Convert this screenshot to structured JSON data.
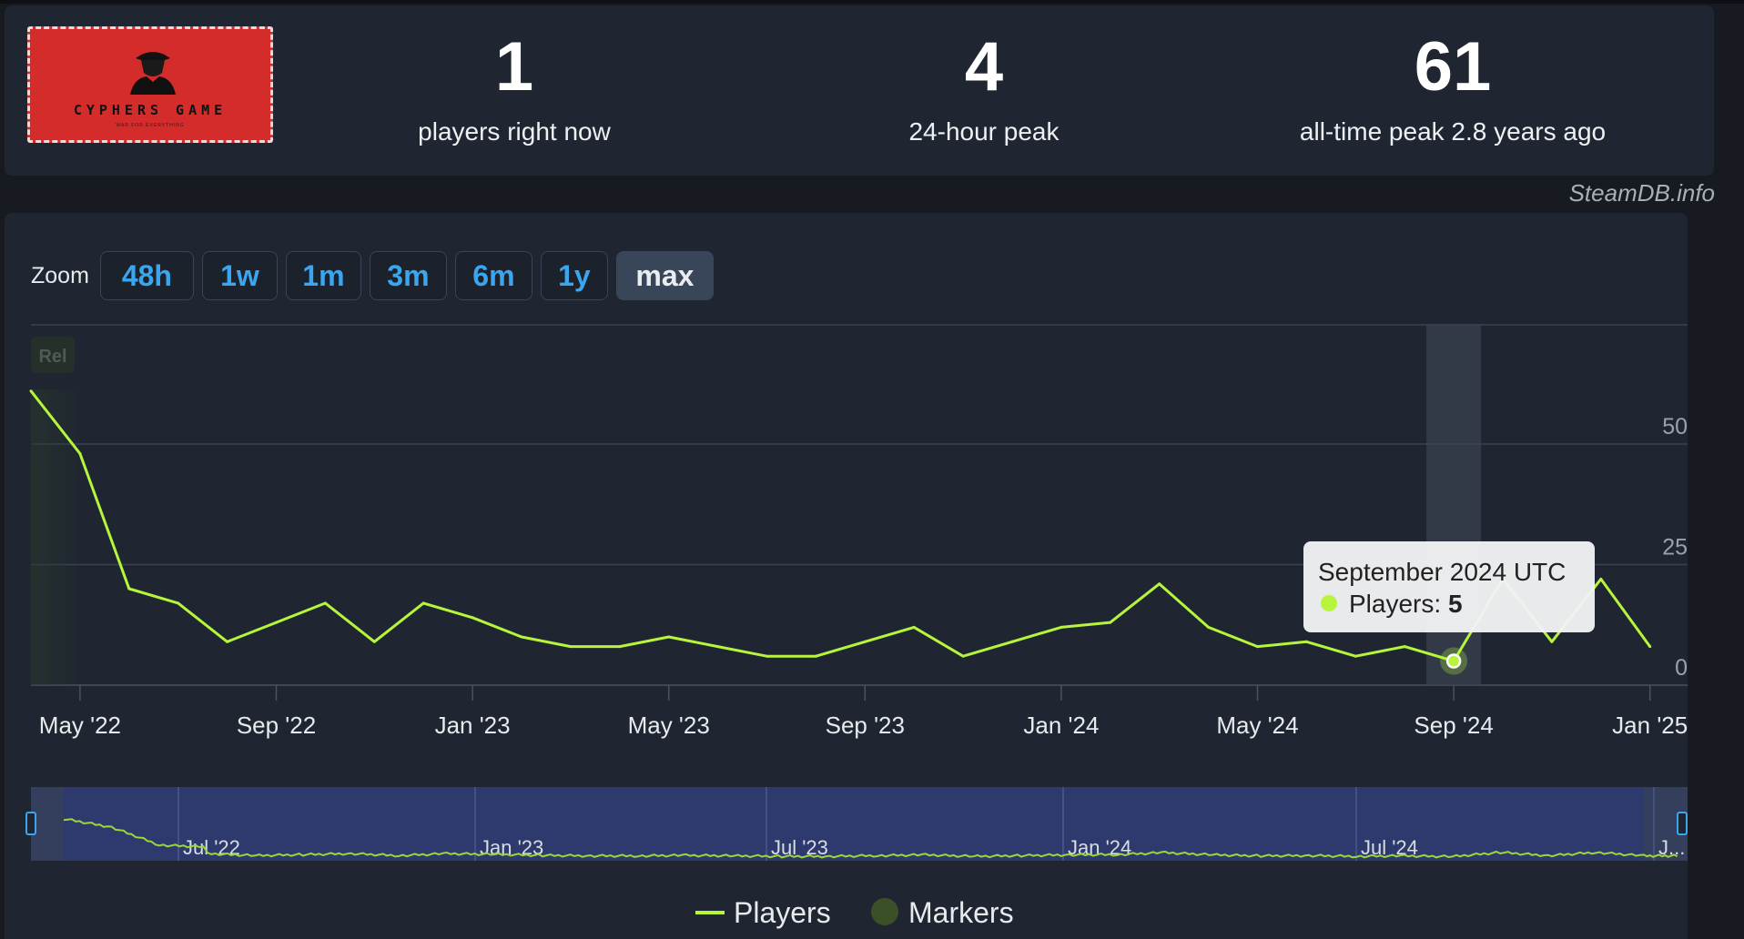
{
  "stats": {
    "current": {
      "value": "1",
      "label": "players right now"
    },
    "peak24": {
      "value": "4",
      "label": "24-hour peak"
    },
    "alltime": {
      "value": "61",
      "label": "all-time peak 2.8 years ago"
    }
  },
  "logo": {
    "title": "CYPHERS GAME",
    "subtitle": "WAR FOR EVERYTHING"
  },
  "watermark": "SteamDB.info",
  "zoom": {
    "label": "Zoom",
    "buttons": [
      "48h",
      "1w",
      "1m",
      "3m",
      "6m",
      "1y",
      "max"
    ],
    "active": "max"
  },
  "rel_label": "Rel",
  "tooltip": {
    "title": "September 2024 UTC",
    "series": "Players",
    "value": "5"
  },
  "legend": [
    {
      "name": "Players",
      "color": "#b7f53c"
    },
    {
      "name": "Markers",
      "color": "#3c5028"
    }
  ],
  "colors": {
    "line": "#b7f53c",
    "panel": "#1f2631",
    "navigator": "#2e3a6e",
    "accent": "#3aa6f0"
  },
  "chart_data": {
    "type": "line",
    "series": [
      {
        "name": "Players",
        "x": [
          "2022-04",
          "2022-05",
          "2022-06",
          "2022-07",
          "2022-08",
          "2022-09",
          "2022-10",
          "2022-11",
          "2022-12",
          "2023-01",
          "2023-02",
          "2023-03",
          "2023-04",
          "2023-05",
          "2023-06",
          "2023-07",
          "2023-08",
          "2023-09",
          "2023-10",
          "2023-11",
          "2023-12",
          "2024-01",
          "2024-02",
          "2024-03",
          "2024-04",
          "2024-05",
          "2024-06",
          "2024-07",
          "2024-08",
          "2024-09",
          "2024-10",
          "2024-11",
          "2024-12",
          "2025-01"
        ],
        "values": [
          61,
          48,
          20,
          17,
          9,
          13,
          17,
          9,
          17,
          14,
          10,
          8,
          8,
          10,
          8,
          6,
          6,
          9,
          12,
          6,
          9,
          12,
          13,
          21,
          12,
          8,
          9,
          6,
          8,
          5,
          22,
          9,
          22,
          8
        ]
      }
    ],
    "yaxis": {
      "ticks": [
        0,
        25,
        50
      ],
      "range": [
        0,
        75
      ]
    },
    "xaxis": {
      "ticks": [
        "May '22",
        "Sep '22",
        "Jan '23",
        "May '23",
        "Sep '23",
        "Jan '24",
        "May '24",
        "Sep '24",
        "Jan '25"
      ]
    },
    "navigator": {
      "ticks": [
        "Jul '22",
        "Jan '23",
        "Jul '23",
        "Jan '24",
        "Jul '24",
        "J..."
      ]
    },
    "highlight": {
      "x": "2024-09",
      "value": 5
    },
    "grid": true,
    "legend_position": "bottom-center"
  }
}
